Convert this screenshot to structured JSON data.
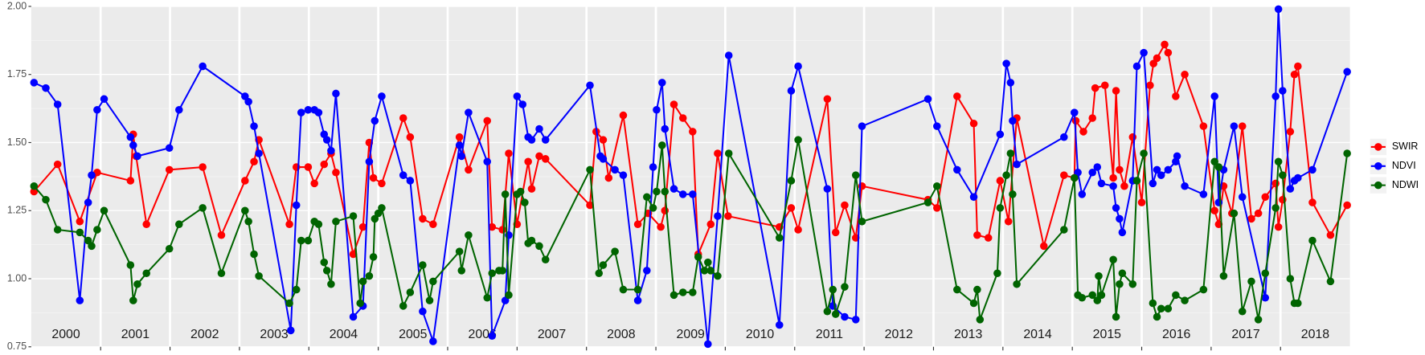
{
  "chart_data": {
    "type": "line",
    "xlim": [
      2000,
      2019
    ],
    "ylim": [
      0.75,
      2.0
    ],
    "yticks": [
      0.75,
      {
        "value": 1.0,
        "label": "1.00"
      },
      1.25,
      {
        "value": 1.5,
        "label": "1.50"
      },
      1.75,
      {
        "value": 2.0,
        "label": "2.00"
      }
    ],
    "yminor_ticks": [
      0.875,
      1.125,
      1.375,
      1.625,
      1.875
    ],
    "xticks": [
      {
        "value": 2000.5,
        "label": "2000"
      },
      {
        "value": 2001.5,
        "label": "2001"
      },
      {
        "value": 2002.5,
        "label": "2002"
      },
      {
        "value": 2003.5,
        "label": "2003"
      },
      {
        "value": 2004.5,
        "label": "2004"
      },
      {
        "value": 2005.5,
        "label": "2005"
      },
      {
        "value": 2006.5,
        "label": "2006"
      },
      {
        "value": 2007.5,
        "label": "2007"
      },
      {
        "value": 2008.5,
        "label": "2008"
      },
      {
        "value": 2009.5,
        "label": "2009"
      },
      {
        "value": 2010.5,
        "label": "2010"
      },
      {
        "value": 2011.5,
        "label": "2011"
      },
      {
        "value": 2012.5,
        "label": "2012"
      },
      {
        "value": 2013.5,
        "label": "2013"
      },
      {
        "value": 2014.5,
        "label": "2014"
      },
      {
        "value": 2015.5,
        "label": "2015"
      },
      {
        "value": 2016.5,
        "label": "2016"
      },
      {
        "value": 2017.5,
        "label": "2017"
      },
      {
        "value": 2018.5,
        "label": "2018"
      }
    ],
    "xgrid": [
      2001,
      2002,
      2003,
      2004,
      2005,
      2006,
      2007,
      2008,
      2009,
      2010,
      2011,
      2012,
      2013,
      2014,
      2015,
      2016,
      2017,
      2018
    ],
    "grid": true,
    "legend": "right",
    "series": [
      {
        "name": "SWIR",
        "color": "#ff0000",
        "x": [
          2000.04,
          2000.38,
          2000.7,
          2000.95,
          2001.43,
          2001.47,
          2001.51,
          2001.66,
          2001.99,
          2002.47,
          2002.74,
          2003.08,
          2003.21,
          2003.28,
          2003.72,
          2003.82,
          2003.99,
          2004.08,
          2004.22,
          2004.32,
          2004.39,
          2004.64,
          2004.78,
          2004.87,
          2004.93,
          2005.05,
          2005.36,
          2005.46,
          2005.64,
          2005.79,
          2006.17,
          2006.3,
          2006.57,
          2006.64,
          2006.79,
          2006.88,
          2007.0,
          2007.16,
          2007.21,
          2007.32,
          2007.41,
          2008.05,
          2008.14,
          2008.24,
          2008.32,
          2008.53,
          2008.74,
          2008.89,
          2009.07,
          2009.13,
          2009.26,
          2009.39,
          2009.53,
          2009.61,
          2009.79,
          2009.89,
          2010.04,
          2010.78,
          2010.95,
          2011.05,
          2011.47,
          2011.59,
          2011.72,
          2011.88,
          2011.97,
          2012.92,
          2013.05,
          2013.34,
          2013.58,
          2013.63,
          2013.79,
          2013.96,
          2014.08,
          2014.2,
          2014.59,
          2014.88,
          2015.03,
          2015.05,
          2015.16,
          2015.29,
          2015.33,
          2015.47,
          2015.59,
          2015.63,
          2015.68,
          2015.75,
          2015.87,
          2016.0,
          2016.12,
          2016.17,
          2016.22,
          2016.33,
          2016.38,
          2016.49,
          2016.62,
          2016.89,
          2017.05,
          2017.11,
          2017.18,
          2017.3,
          2017.45,
          2017.58,
          2017.68,
          2017.78,
          2017.93,
          2017.97,
          2018.03,
          2018.14,
          2018.2,
          2018.25,
          2018.46,
          2018.72,
          2018.96
        ],
        "values": [
          1.32,
          1.42,
          1.21,
          1.39,
          1.36,
          1.53,
          1.45,
          1.2,
          1.4,
          1.41,
          1.16,
          1.36,
          1.43,
          1.51,
          1.2,
          1.41,
          1.41,
          1.35,
          1.42,
          1.46,
          1.39,
          1.09,
          1.19,
          1.5,
          1.37,
          1.35,
          1.59,
          1.52,
          1.22,
          1.2,
          1.52,
          1.4,
          1.58,
          1.19,
          1.18,
          1.46,
          1.2,
          1.43,
          1.33,
          1.45,
          1.44,
          1.27,
          1.54,
          1.51,
          1.37,
          1.6,
          1.2,
          1.24,
          1.19,
          1.25,
          1.64,
          1.59,
          1.54,
          1.09,
          1.2,
          1.46,
          1.23,
          1.19,
          1.26,
          1.18,
          1.66,
          1.17,
          1.27,
          1.15,
          1.34,
          1.29,
          1.26,
          1.67,
          1.57,
          1.16,
          1.15,
          1.36,
          1.21,
          1.59,
          1.12,
          1.38,
          1.37,
          1.58,
          1.54,
          1.59,
          1.7,
          1.71,
          1.37,
          1.69,
          1.4,
          1.34,
          1.52,
          1.28,
          1.71,
          1.79,
          1.81,
          1.86,
          1.83,
          1.67,
          1.75,
          1.56,
          1.25,
          1.2,
          1.34,
          1.24,
          1.56,
          1.22,
          1.24,
          1.3,
          1.35,
          1.19,
          1.29,
          1.54,
          1.75,
          1.78,
          1.28,
          1.16,
          1.27
        ]
      },
      {
        "name": "NDVI",
        "color": "#0000ff",
        "x": [
          2000.04,
          2000.21,
          2000.38,
          2000.7,
          2000.82,
          2000.87,
          2000.95,
          2001.05,
          2001.43,
          2001.47,
          2001.53,
          2001.99,
          2002.13,
          2002.47,
          2003.08,
          2003.13,
          2003.21,
          2003.28,
          2003.74,
          2003.82,
          2003.89,
          2003.99,
          2004.08,
          2004.14,
          2004.22,
          2004.26,
          2004.32,
          2004.39,
          2004.64,
          2004.78,
          2004.87,
          2004.95,
          2005.05,
          2005.36,
          2005.46,
          2005.64,
          2005.79,
          2006.17,
          2006.2,
          2006.3,
          2006.57,
          2006.64,
          2006.83,
          2006.88,
          2007.0,
          2007.08,
          2007.16,
          2007.21,
          2007.32,
          2007.41,
          2008.05,
          2008.2,
          2008.24,
          2008.41,
          2008.53,
          2008.74,
          2008.87,
          2008.96,
          2009.01,
          2009.09,
          2009.13,
          2009.26,
          2009.39,
          2009.53,
          2009.75,
          2009.89,
          2010.05,
          2010.78,
          2010.95,
          2011.05,
          2011.47,
          2011.55,
          2011.72,
          2011.88,
          2011.97,
          2012.92,
          2013.05,
          2013.34,
          2013.58,
          2013.96,
          2014.05,
          2014.11,
          2014.14,
          2014.2,
          2014.88,
          2015.03,
          2015.08,
          2015.14,
          2015.29,
          2015.36,
          2015.42,
          2015.59,
          2015.63,
          2015.68,
          2015.72,
          2015.87,
          2015.93,
          2016.03,
          2016.16,
          2016.22,
          2016.28,
          2016.38,
          2016.49,
          2016.51,
          2016.62,
          2016.89,
          2017.05,
          2017.11,
          2017.18,
          2017.33,
          2017.45,
          2017.78,
          2017.93,
          2017.97,
          2018.03,
          2018.14,
          2018.2,
          2018.25,
          2018.46,
          2018.96
        ],
        "values": [
          1.72,
          1.7,
          1.64,
          0.92,
          1.28,
          1.38,
          1.62,
          1.66,
          1.52,
          1.49,
          1.45,
          1.48,
          1.62,
          1.78,
          1.67,
          1.65,
          1.56,
          1.46,
          0.81,
          1.27,
          1.61,
          1.62,
          1.62,
          1.61,
          1.53,
          1.51,
          1.47,
          1.68,
          0.86,
          0.9,
          1.43,
          1.58,
          1.67,
          1.38,
          1.36,
          0.88,
          0.77,
          1.49,
          1.45,
          1.61,
          1.43,
          0.79,
          0.92,
          1.16,
          1.67,
          1.64,
          1.52,
          1.51,
          1.55,
          1.51,
          1.71,
          1.45,
          1.44,
          1.4,
          1.38,
          0.92,
          1.03,
          1.41,
          1.62,
          1.72,
          1.55,
          1.33,
          1.31,
          1.31,
          0.76,
          1.23,
          1.82,
          0.83,
          1.69,
          1.78,
          1.33,
          0.9,
          0.86,
          0.85,
          1.56,
          1.66,
          1.56,
          1.4,
          1.3,
          1.53,
          1.79,
          1.72,
          1.58,
          1.42,
          1.52,
          1.61,
          1.39,
          1.31,
          1.39,
          1.41,
          1.35,
          1.34,
          1.26,
          1.22,
          1.17,
          1.36,
          1.78,
          1.83,
          1.35,
          1.4,
          1.38,
          1.4,
          1.43,
          1.45,
          1.34,
          1.31,
          1.67,
          1.28,
          1.4,
          1.56,
          1.3,
          0.93,
          1.67,
          1.99,
          1.69,
          1.33,
          1.36,
          1.37,
          1.4,
          1.76
        ]
      },
      {
        "name": "NDWI",
        "color": "#006400",
        "x": [
          2000.04,
          2000.21,
          2000.38,
          2000.7,
          2000.82,
          2000.87,
          2000.95,
          2001.05,
          2001.43,
          2001.47,
          2001.53,
          2001.66,
          2001.99,
          2002.13,
          2002.47,
          2002.74,
          2003.08,
          2003.13,
          2003.21,
          2003.28,
          2003.72,
          2003.82,
          2003.89,
          2003.99,
          2004.08,
          2004.14,
          2004.22,
          2004.26,
          2004.32,
          2004.39,
          2004.64,
          2004.74,
          2004.78,
          2004.87,
          2004.93,
          2004.95,
          2005.0,
          2005.05,
          2005.36,
          2005.46,
          2005.64,
          2005.74,
          2005.79,
          2006.17,
          2006.2,
          2006.3,
          2006.57,
          2006.64,
          2006.74,
          2006.79,
          2006.83,
          2006.88,
          2007.0,
          2007.05,
          2007.11,
          2007.16,
          2007.21,
          2007.32,
          2007.41,
          2008.05,
          2008.18,
          2008.24,
          2008.41,
          2008.53,
          2008.74,
          2008.87,
          2008.96,
          2009.01,
          2009.09,
          2009.13,
          2009.26,
          2009.39,
          2009.53,
          2009.61,
          2009.7,
          2009.75,
          2009.79,
          2009.89,
          2010.05,
          2010.78,
          2010.95,
          2011.05,
          2011.47,
          2011.55,
          2011.59,
          2011.72,
          2011.88,
          2011.97,
          2012.92,
          2013.05,
          2013.34,
          2013.58,
          2013.63,
          2013.67,
          2013.92,
          2013.96,
          2014.05,
          2014.11,
          2014.14,
          2014.2,
          2014.88,
          2015.03,
          2015.08,
          2015.14,
          2015.29,
          2015.36,
          2015.38,
          2015.42,
          2015.59,
          2015.63,
          2015.68,
          2015.72,
          2015.87,
          2015.93,
          2016.03,
          2016.16,
          2016.22,
          2016.28,
          2016.38,
          2016.49,
          2016.62,
          2016.89,
          2017.05,
          2017.11,
          2017.18,
          2017.33,
          2017.45,
          2017.58,
          2017.68,
          2017.78,
          2017.93,
          2017.97,
          2018.03,
          2018.14,
          2018.2,
          2018.25,
          2018.46,
          2018.72,
          2018.96
        ],
        "values": [
          1.34,
          1.29,
          1.18,
          1.17,
          1.14,
          1.12,
          1.18,
          1.25,
          1.05,
          0.92,
          0.98,
          1.02,
          1.11,
          1.2,
          1.26,
          1.02,
          1.25,
          1.21,
          1.09,
          1.01,
          0.91,
          0.96,
          1.14,
          1.14,
          1.21,
          1.2,
          1.06,
          1.03,
          0.98,
          1.21,
          1.23,
          0.91,
          0.99,
          1.01,
          1.08,
          1.22,
          1.24,
          1.26,
          0.9,
          0.95,
          1.05,
          0.92,
          0.99,
          1.1,
          1.03,
          1.16,
          0.93,
          1.02,
          1.03,
          1.03,
          1.31,
          0.94,
          1.31,
          1.32,
          1.28,
          1.13,
          1.14,
          1.12,
          1.07,
          1.4,
          1.02,
          1.05,
          1.1,
          0.96,
          0.96,
          1.3,
          1.26,
          1.32,
          1.49,
          1.32,
          0.94,
          0.95,
          0.95,
          1.08,
          1.03,
          1.06,
          1.03,
          1.01,
          1.46,
          1.15,
          1.36,
          1.51,
          0.88,
          0.96,
          0.87,
          0.97,
          1.38,
          1.21,
          1.28,
          1.34,
          0.96,
          0.91,
          0.96,
          0.85,
          1.02,
          1.26,
          1.38,
          1.46,
          1.31,
          0.98,
          1.18,
          1.37,
          0.94,
          0.93,
          0.94,
          0.92,
          1.01,
          0.94,
          1.07,
          0.86,
          0.98,
          1.02,
          0.98,
          1.36,
          1.46,
          0.91,
          0.86,
          0.89,
          0.89,
          0.94,
          0.92,
          0.96,
          1.43,
          1.41,
          1.01,
          1.24,
          0.88,
          0.99,
          0.85,
          1.02,
          1.26,
          1.43,
          1.38,
          1.0,
          0.91,
          0.91,
          1.14,
          0.99,
          1.46
        ]
      }
    ]
  }
}
